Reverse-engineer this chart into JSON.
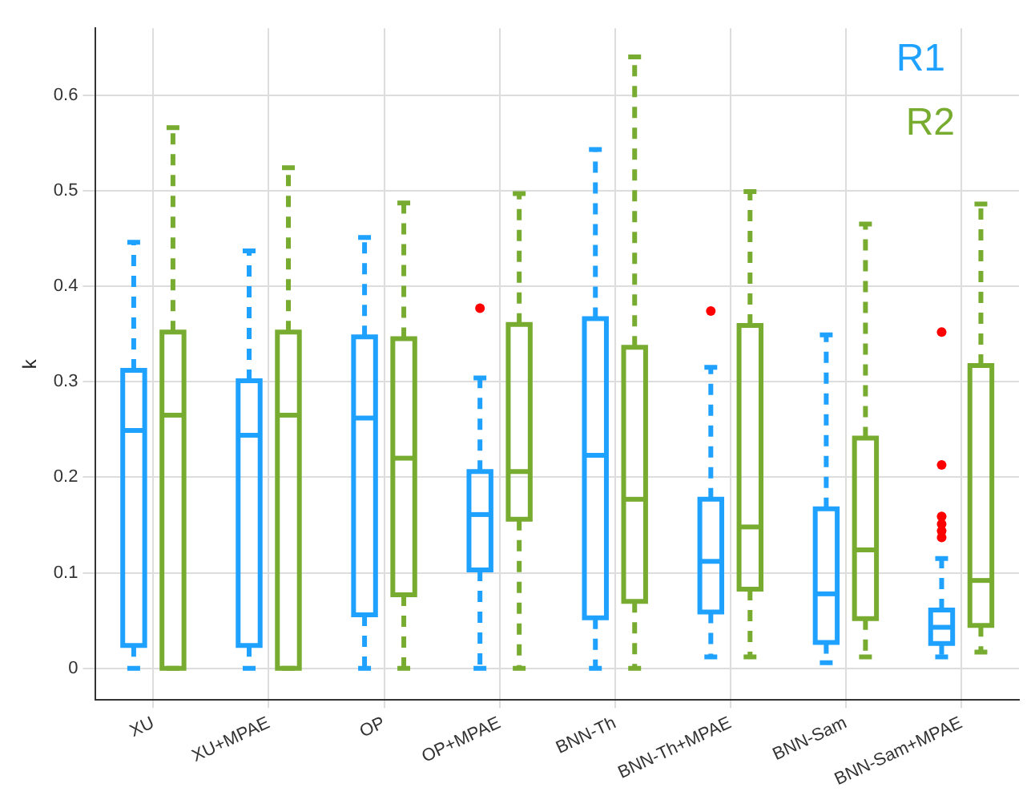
{
  "chart_data": {
    "type": "box",
    "ylabel": "k",
    "categories": [
      "XU",
      "XU+MPAE",
      "OP",
      "OP+MPAE",
      "BNN-Th",
      "BNN-Th+MPAE",
      "BNN-Sam",
      "BNN-Sam+MPAE"
    ],
    "series": [
      {
        "name": "R1",
        "color": "#1ea1ff",
        "boxes": [
          {
            "low": 0,
            "q1": 0.024,
            "median": 0.249,
            "q3": 0.312,
            "high": 0.446
          },
          {
            "low": 0,
            "q1": 0.024,
            "median": 0.244,
            "q3": 0.301,
            "high": 0.437
          },
          {
            "low": 0,
            "q1": 0.056,
            "median": 0.262,
            "q3": 0.347,
            "high": 0.451
          },
          {
            "low": 0,
            "q1": 0.103,
            "median": 0.161,
            "q3": 0.206,
            "high": 0.304,
            "outliers": [
              0.377
            ]
          },
          {
            "low": 0,
            "q1": 0.053,
            "median": 0.223,
            "q3": 0.366,
            "high": 0.543
          },
          {
            "low": 0.012,
            "q1": 0.059,
            "median": 0.112,
            "q3": 0.177,
            "high": 0.315,
            "outliers": [
              0.374
            ]
          },
          {
            "low": 0.006,
            "q1": 0.027,
            "median": 0.078,
            "q3": 0.167,
            "high": 0.349
          },
          {
            "low": 0.012,
            "q1": 0.026,
            "median": 0.043,
            "q3": 0.061,
            "high": 0.115,
            "outliers": [
              0.352,
              0.213,
              0.159,
              0.151,
              0.144,
              0.137
            ]
          }
        ]
      },
      {
        "name": "R2",
        "color": "#77ac30",
        "boxes": [
          {
            "low": 0,
            "q1": 0,
            "median": 0.265,
            "q3": 0.352,
            "high": 0.566
          },
          {
            "low": 0,
            "q1": 0,
            "median": 0.265,
            "q3": 0.352,
            "high": 0.524
          },
          {
            "low": 0,
            "q1": 0.077,
            "median": 0.22,
            "q3": 0.345,
            "high": 0.487
          },
          {
            "low": 0,
            "q1": 0.156,
            "median": 0.206,
            "q3": 0.36,
            "high": 0.497
          },
          {
            "low": 0,
            "q1": 0.07,
            "median": 0.177,
            "q3": 0.336,
            "high": 0.64
          },
          {
            "low": 0.012,
            "q1": 0.083,
            "median": 0.148,
            "q3": 0.359,
            "high": 0.499
          },
          {
            "low": 0.012,
            "q1": 0.052,
            "median": 0.124,
            "q3": 0.241,
            "high": 0.465
          },
          {
            "low": 0.017,
            "q1": 0.045,
            "median": 0.092,
            "q3": 0.317,
            "high": 0.486
          }
        ]
      }
    ],
    "ylim": [
      -0.033,
      0.67
    ],
    "yticks": [
      0,
      0.1,
      0.2,
      0.3,
      0.4,
      0.5,
      0.6
    ],
    "grid": true,
    "legend": "top right",
    "line_style": "dashed"
  }
}
